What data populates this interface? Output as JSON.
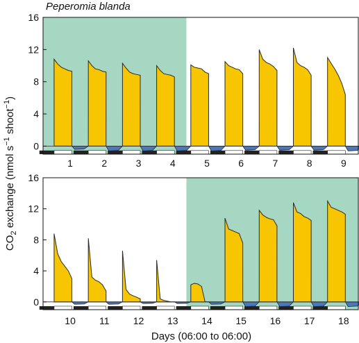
{
  "chart_data": {
    "type": "area",
    "title": "Peperomia blanda",
    "ylabel": "CO2 exchange (nmol s-1 shoot-1)",
    "xlabel": "Days (06:00 to 06:00)",
    "ylim": [
      -1,
      16
    ],
    "yticks": [
      0,
      4,
      8,
      12,
      16
    ],
    "colors": {
      "day_uptake": "#f7c600",
      "night_release": "#4a78b8",
      "treatment_background": "#a6d7c2",
      "outline": "#2a2a2a"
    },
    "panels": [
      {
        "categories": [
          "1",
          "2",
          "3",
          "4",
          "5",
          "6",
          "7",
          "8",
          "9"
        ],
        "shaded_day_range": [
          1,
          4
        ],
        "series": [
          {
            "values_day": [
              [
                10.8,
                10.2,
                9.8,
                9.6,
                9.4,
                9.3
              ],
              [
                10.6,
                10.0,
                9.6,
                9.5,
                9.3,
                9.2
              ],
              [
                10.3,
                9.7,
                9.2,
                9.0,
                8.9,
                8.8
              ],
              [
                10.0,
                9.4,
                9.0,
                8.9,
                8.8,
                8.6
              ],
              [
                10.1,
                9.8,
                9.7,
                9.6,
                9.2,
                9.0
              ],
              [
                10.5,
                10.0,
                9.8,
                9.6,
                9.5,
                9.0
              ],
              [
                12.0,
                10.8,
                10.4,
                10.2,
                9.9,
                9.4
              ],
              [
                12.2,
                10.4,
                10.0,
                9.8,
                9.5,
                8.8
              ],
              [
                11.0,
                10.3,
                9.6,
                8.8,
                7.8,
                6.4
              ]
            ],
            "values_night": [
              -0.4,
              -0.6,
              -0.6,
              -0.6,
              -0.6,
              -0.5,
              -0.5,
              -0.5,
              -0.6
            ]
          }
        ]
      },
      {
        "categories": [
          "10",
          "11",
          "12",
          "13",
          "14",
          "15",
          "16",
          "17",
          "18"
        ],
        "shaded_day_range": [
          14,
          18
        ],
        "series": [
          {
            "values_day": [
              [
                8.8,
                6.2,
                5.2,
                4.6,
                4.0,
                3.0
              ],
              [
                8.2,
                3.2,
                2.8,
                2.6,
                2.2,
                1.4
              ],
              [
                6.6,
                1.6,
                1.0,
                0.8,
                0.6,
                0.4
              ],
              [
                5.4,
                0.4,
                0.2,
                0.1,
                0.0,
                0.0
              ],
              [
                2.2,
                2.4,
                2.3,
                2.0,
                0.0,
                0.0
              ],
              [
                10.8,
                9.4,
                9.2,
                9.0,
                8.8,
                7.6
              ],
              [
                11.8,
                11.2,
                10.9,
                10.7,
                10.6,
                9.8
              ],
              [
                12.8,
                11.6,
                11.4,
                11.0,
                10.8,
                10.5
              ],
              [
                13.0,
                12.2,
                12.0,
                11.8,
                11.6,
                11.3
              ]
            ],
            "values_night": [
              -0.3,
              -0.3,
              -0.2,
              -0.2,
              -0.3,
              -0.6,
              -0.6,
              -0.6,
              -0.6
            ]
          }
        ]
      }
    ]
  }
}
